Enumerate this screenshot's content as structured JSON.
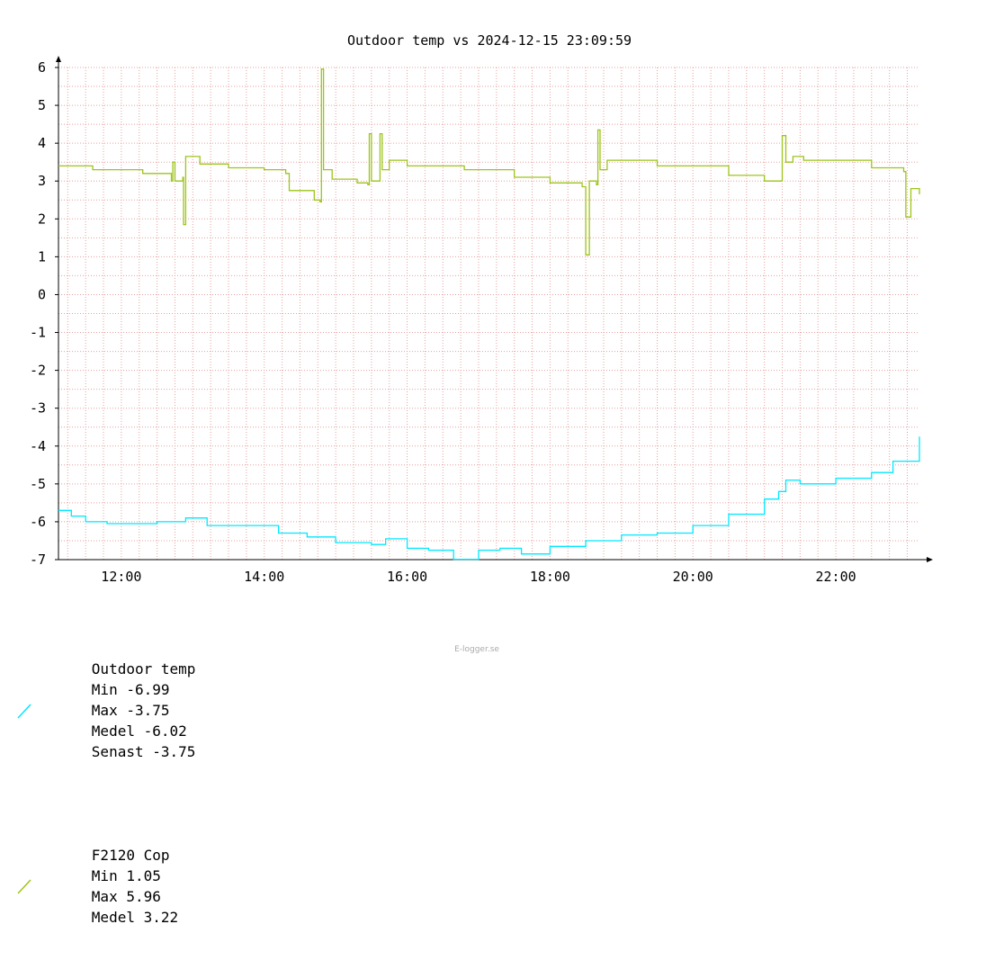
{
  "chart_data": {
    "type": "line",
    "title": "Outdoor temp vs 2024-12-15 23:09:59",
    "xlabel": "",
    "ylabel": "",
    "ylim": [
      -7,
      6
    ],
    "xlim_hours": [
      11.12,
      23.17
    ],
    "grid": true,
    "legend_position": "bottom-left",
    "y_ticks": [
      "6",
      "5",
      "4",
      "3",
      "2",
      "1",
      "0",
      "-1",
      "-2",
      "-3",
      "-4",
      "-5",
      "-6",
      "-7"
    ],
    "x_ticks": [
      "12:00",
      "14:00",
      "16:00",
      "18:00",
      "20:00",
      "22:00"
    ],
    "series": [
      {
        "name": "Outdoor temp",
        "color": "#00e8ff",
        "stats": {
          "min": "-6.99",
          "max": "-3.75",
          "medel": "-6.02",
          "senast": "-3.75"
        },
        "points": [
          [
            11.12,
            -5.7
          ],
          [
            11.3,
            -5.85
          ],
          [
            11.5,
            -6.0
          ],
          [
            11.8,
            -6.05
          ],
          [
            12.5,
            -6.0
          ],
          [
            12.9,
            -5.9
          ],
          [
            13.2,
            -6.1
          ],
          [
            13.8,
            -6.1
          ],
          [
            14.2,
            -6.3
          ],
          [
            14.6,
            -6.4
          ],
          [
            15.0,
            -6.55
          ],
          [
            15.5,
            -6.6
          ],
          [
            15.7,
            -6.45
          ],
          [
            16.0,
            -6.7
          ],
          [
            16.3,
            -6.75
          ],
          [
            16.65,
            -6.99
          ],
          [
            17.0,
            -6.75
          ],
          [
            17.3,
            -6.7
          ],
          [
            17.6,
            -6.85
          ],
          [
            18.0,
            -6.65
          ],
          [
            18.5,
            -6.5
          ],
          [
            19.0,
            -6.35
          ],
          [
            19.5,
            -6.3
          ],
          [
            20.0,
            -6.1
          ],
          [
            20.5,
            -5.8
          ],
          [
            21.0,
            -5.4
          ],
          [
            21.2,
            -5.2
          ],
          [
            21.3,
            -4.9
          ],
          [
            21.5,
            -5.0
          ],
          [
            22.0,
            -4.85
          ],
          [
            22.5,
            -4.7
          ],
          [
            22.8,
            -4.4
          ],
          [
            23.17,
            -3.75
          ]
        ]
      },
      {
        "name": "F2120 Cop",
        "color": "#9ec41a",
        "stats": {
          "min": "1.05",
          "max": "5.96",
          "medel": "3.22"
        },
        "points": [
          [
            11.12,
            3.4
          ],
          [
            11.6,
            3.3
          ],
          [
            12.3,
            3.2
          ],
          [
            12.7,
            3.0
          ],
          [
            12.72,
            3.5
          ],
          [
            12.75,
            3.0
          ],
          [
            12.86,
            3.1
          ],
          [
            12.87,
            1.85
          ],
          [
            12.9,
            3.65
          ],
          [
            13.1,
            3.45
          ],
          [
            13.5,
            3.35
          ],
          [
            14.0,
            3.3
          ],
          [
            14.3,
            3.2
          ],
          [
            14.35,
            2.75
          ],
          [
            14.7,
            2.5
          ],
          [
            14.78,
            2.45
          ],
          [
            14.8,
            5.96
          ],
          [
            14.83,
            3.3
          ],
          [
            14.95,
            3.05
          ],
          [
            15.3,
            2.95
          ],
          [
            15.45,
            2.9
          ],
          [
            15.47,
            4.25
          ],
          [
            15.5,
            3.0
          ],
          [
            15.6,
            3.0
          ],
          [
            15.62,
            4.25
          ],
          [
            15.65,
            3.3
          ],
          [
            15.75,
            3.55
          ],
          [
            16.0,
            3.4
          ],
          [
            16.8,
            3.3
          ],
          [
            17.5,
            3.1
          ],
          [
            18.0,
            2.95
          ],
          [
            18.45,
            2.85
          ],
          [
            18.5,
            1.05
          ],
          [
            18.55,
            3.0
          ],
          [
            18.65,
            2.9
          ],
          [
            18.67,
            4.35
          ],
          [
            18.7,
            3.3
          ],
          [
            18.8,
            3.55
          ],
          [
            19.5,
            3.4
          ],
          [
            20.5,
            3.15
          ],
          [
            21.0,
            3.0
          ],
          [
            21.1,
            3.0
          ],
          [
            21.25,
            4.2
          ],
          [
            21.3,
            3.5
          ],
          [
            21.4,
            3.65
          ],
          [
            21.55,
            3.55
          ],
          [
            22.5,
            3.35
          ],
          [
            22.95,
            3.25
          ],
          [
            22.98,
            2.05
          ],
          [
            23.05,
            2.8
          ],
          [
            23.17,
            2.65
          ]
        ]
      }
    ]
  },
  "legend": {
    "items": [
      {
        "label": "Outdoor temp",
        "min_label": "Min -6.99",
        "max_label": "Max -3.75",
        "medel_label": "Medel -6.02",
        "senast_label": "Senast -3.75"
      },
      {
        "label": "F2120 Cop",
        "min_label": "Min 1.05",
        "max_label": "Max 5.96",
        "medel_label": "Medel 3.22"
      }
    ]
  },
  "credit": "E-logger.se"
}
